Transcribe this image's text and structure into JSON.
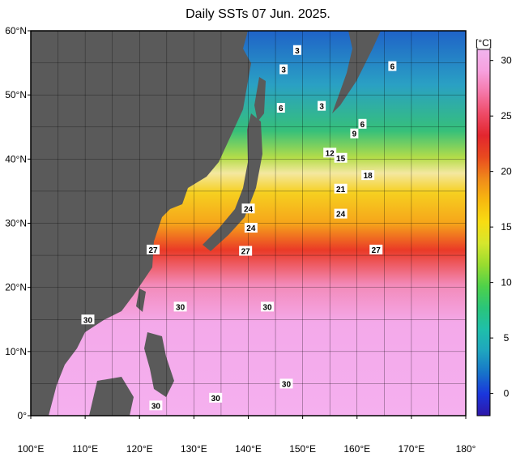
{
  "title": "Daily SSTs 07 Jun. 2025.",
  "colorbar": {
    "unit": "[°C]",
    "ticks": [
      "30",
      "25",
      "20",
      "15",
      "10",
      "5",
      "0"
    ],
    "tick_values": [
      30,
      25,
      20,
      15,
      10,
      5,
      0
    ],
    "range": [
      -2,
      31
    ],
    "colors": [
      "#2e17a8",
      "#1a36dc",
      "#1774c9",
      "#1fa5bf",
      "#1fbfaa",
      "#2ac57a",
      "#4ed14a",
      "#98dc2f",
      "#d6e62d",
      "#f8dc12",
      "#f7b80f",
      "#f08a1a",
      "#e94a1f",
      "#e2262e",
      "#ee4a66",
      "#f577a8",
      "#f7a0de",
      "#f1b4ee"
    ]
  },
  "axes": {
    "lat_labels": [
      "60°N",
      "50°N",
      "40°N",
      "30°N",
      "20°N",
      "10°N",
      "0°"
    ],
    "lat_values": [
      60,
      50,
      40,
      30,
      20,
      10,
      0
    ],
    "lon_labels": [
      "100°E",
      "110°E",
      "120°E",
      "130°E",
      "140°E",
      "150°E",
      "160°E",
      "170°E",
      "180°"
    ],
    "lon_values": [
      100,
      110,
      120,
      130,
      140,
      150,
      160,
      170,
      180
    ],
    "lat_range": [
      0,
      60
    ],
    "lon_range": [
      100,
      180
    ]
  },
  "contour_labels": [
    {
      "text": "3",
      "lon": 149,
      "lat": 57
    },
    {
      "text": "3",
      "lon": 146.5,
      "lat": 54
    },
    {
      "text": "3",
      "lon": 153.5,
      "lat": 48.3
    },
    {
      "text": "6",
      "lon": 146,
      "lat": 48
    },
    {
      "text": "6",
      "lon": 166.5,
      "lat": 54.5
    },
    {
      "text": "6",
      "lon": 161,
      "lat": 45.5
    },
    {
      "text": "9",
      "lon": 159.5,
      "lat": 44
    },
    {
      "text": "12",
      "lon": 155,
      "lat": 41
    },
    {
      "text": "15",
      "lon": 157,
      "lat": 40.2
    },
    {
      "text": "18",
      "lon": 162,
      "lat": 37.5
    },
    {
      "text": "21",
      "lon": 157,
      "lat": 35.4
    },
    {
      "text": "24",
      "lon": 157,
      "lat": 31.5
    },
    {
      "text": "24",
      "lon": 140,
      "lat": 32.3
    },
    {
      "text": "24",
      "lon": 140.5,
      "lat": 29.3
    },
    {
      "text": "27",
      "lon": 122.5,
      "lat": 25.9
    },
    {
      "text": "27",
      "lon": 139.5,
      "lat": 25.7
    },
    {
      "text": "27",
      "lon": 163.5,
      "lat": 25.9
    },
    {
      "text": "30",
      "lon": 127.5,
      "lat": 17
    },
    {
      "text": "30",
      "lon": 143.5,
      "lat": 17
    },
    {
      "text": "30",
      "lon": 110.5,
      "lat": 15
    },
    {
      "text": "30",
      "lon": 147,
      "lat": 5
    },
    {
      "text": "30",
      "lon": 134,
      "lat": 2.8
    },
    {
      "text": "30",
      "lon": 123,
      "lat": 1.6
    }
  ]
}
